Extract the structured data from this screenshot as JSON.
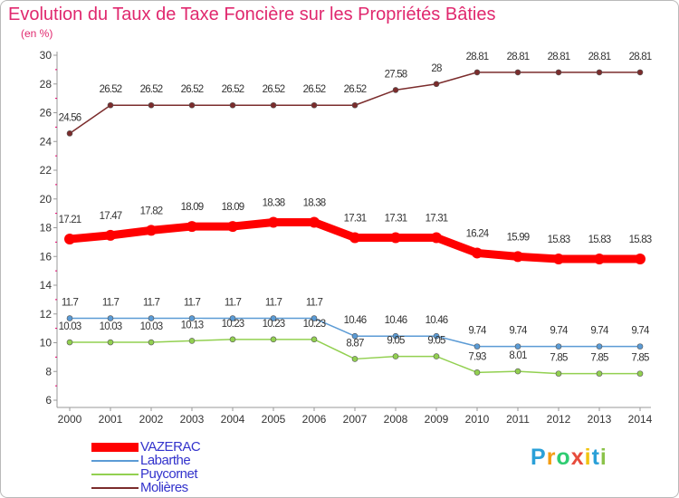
{
  "chart_data": {
    "type": "line",
    "title": "Evolution du Taux de Taxe Foncière sur les Propriétés Bâties",
    "subtitle": "(en %)",
    "xlabel": "",
    "ylabel": "",
    "x": [
      "2000",
      "2001",
      "2002",
      "2003",
      "2004",
      "2005",
      "2006",
      "2007",
      "2008",
      "2009",
      "2010",
      "2011",
      "2012",
      "2013",
      "2014"
    ],
    "y_ticks": [
      "6",
      "8",
      "10",
      "12",
      "14",
      "16",
      "18",
      "20",
      "22",
      "24",
      "26",
      "28",
      "30"
    ],
    "ylim": [
      6,
      30
    ],
    "grid": false,
    "legend_position": "bottom-left",
    "series": [
      {
        "name": "VAZERAC",
        "color": "#ff0000",
        "emphasis": true,
        "values": [
          17.21,
          17.47,
          17.82,
          18.09,
          18.09,
          18.38,
          18.38,
          17.31,
          17.31,
          17.31,
          16.24,
          15.99,
          15.83,
          15.83,
          15.83
        ],
        "labels": [
          "17.21",
          "17.47",
          "17.82",
          "18.09",
          "18.09",
          "18.38",
          "18.38",
          "17.31",
          "17.31",
          "17.31",
          "16.24",
          "15.99",
          "15.83",
          "15.83",
          "15.83"
        ]
      },
      {
        "name": "Labarthe",
        "color": "#5b9bd5",
        "emphasis": false,
        "values": [
          11.7,
          11.7,
          11.7,
          11.7,
          11.7,
          11.7,
          11.7,
          10.46,
          10.46,
          10.46,
          9.74,
          9.74,
          9.74,
          9.74,
          9.74
        ],
        "labels": [
          "11.7",
          "11.7",
          "11.7",
          "11.7",
          "11.7",
          "11.7",
          "11.7",
          "10.46",
          "10.46",
          "10.46",
          "9.74",
          "9.74",
          "9.74",
          "9.74",
          "9.74"
        ]
      },
      {
        "name": "Puycornet",
        "color": "#92d050",
        "emphasis": false,
        "values": [
          10.03,
          10.03,
          10.03,
          10.13,
          10.23,
          10.23,
          10.23,
          8.87,
          9.05,
          9.05,
          7.93,
          8.01,
          7.85,
          7.85,
          7.85
        ],
        "labels": [
          "10.03",
          "10.03",
          "10.03",
          "10.13",
          "10.23",
          "10.23",
          "10.23",
          "8.87",
          "9.05",
          "9.05",
          "7.93",
          "8.01",
          "7.85",
          "7.85",
          "7.85"
        ]
      },
      {
        "name": "Molières",
        "color": "#7b2c2c",
        "emphasis": false,
        "values": [
          24.56,
          26.52,
          26.52,
          26.52,
          26.52,
          26.52,
          26.52,
          26.52,
          27.58,
          28,
          28.81,
          28.81,
          28.81,
          28.81,
          28.81
        ],
        "labels": [
          "24.56",
          "26.52",
          "26.52",
          "26.52",
          "26.52",
          "26.52",
          "26.52",
          "26.52",
          "27.58",
          "28",
          "28.81",
          "28.81",
          "28.81",
          "28.81",
          "28.81"
        ]
      }
    ]
  },
  "brand": {
    "letters": [
      "P",
      "r",
      "o",
      "x",
      "i",
      "t",
      "i"
    ],
    "colors": [
      "#2aa0d8",
      "#f39c12",
      "#2ecc71",
      "#e74c3c",
      "#f1c40f",
      "#2aa0d8",
      "#8bc34a"
    ]
  }
}
